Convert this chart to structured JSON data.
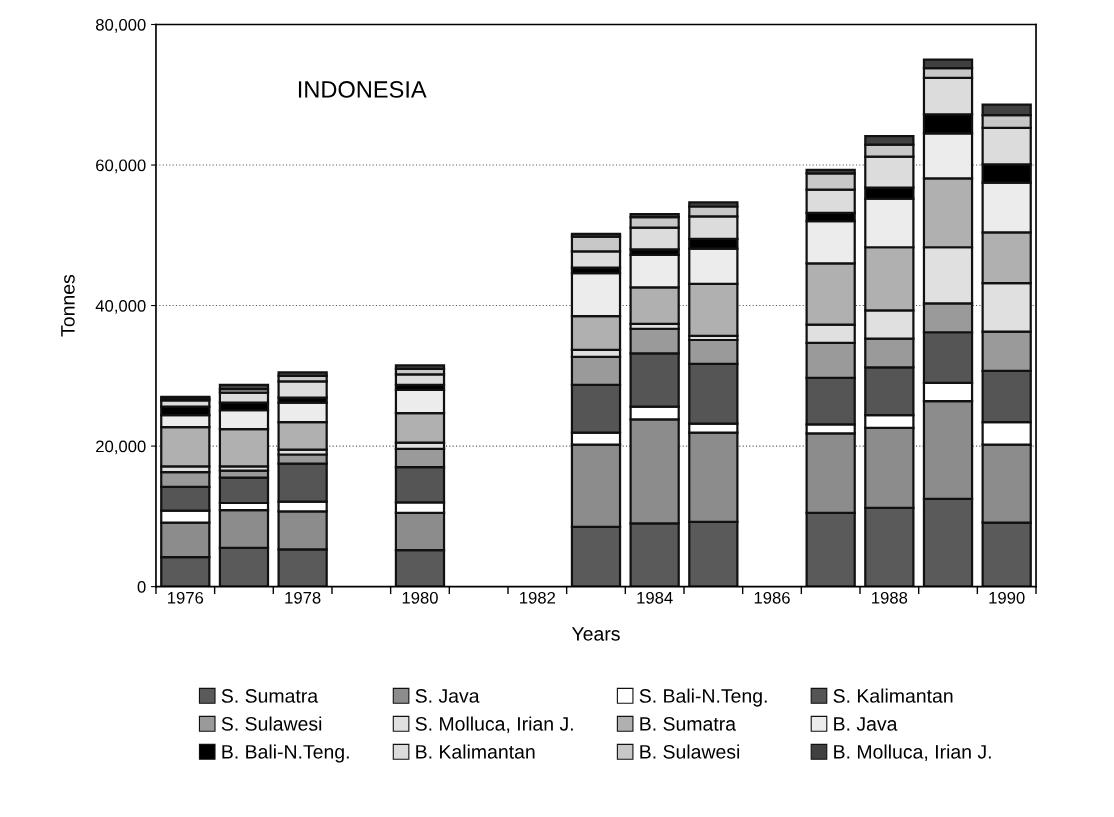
{
  "chart_data": {
    "type": "bar",
    "stacked": true,
    "title": "INDONESIA",
    "xlabel": "Years",
    "ylabel": "Tonnes",
    "categories": [
      "1976",
      null,
      "1978",
      null,
      "1980",
      null,
      "1982",
      null,
      "1984",
      null,
      "1986",
      null,
      "1988",
      null,
      "1990"
    ],
    "ylim": [
      0,
      80000
    ],
    "yticks": [
      {
        "value": 0,
        "label": "0"
      },
      {
        "value": 20000,
        "label": "20,000"
      },
      {
        "value": 40000,
        "label": "40,000"
      },
      {
        "value": 60000,
        "label": "60,000"
      },
      {
        "value": 80000,
        "label": "80,000"
      }
    ],
    "grid": "y",
    "legend": "bottom",
    "series": [
      {
        "name": "S. Sumatra",
        "color": "#5a5a5a",
        "values": [
          4200,
          5500,
          5300,
          null,
          5200,
          null,
          null,
          8500,
          9000,
          9200,
          null,
          10500,
          11200,
          12500,
          9100
        ]
      },
      {
        "name": "S. Java",
        "color": "#8c8c8c",
        "values": [
          4900,
          5400,
          5400,
          null,
          5300,
          null,
          null,
          11700,
          14800,
          12700,
          null,
          11300,
          11400,
          13900,
          11100
        ]
      },
      {
        "name": "S. Bali-N.Teng.",
        "color": "#ffffff",
        "values": [
          1700,
          1000,
          1400,
          null,
          1500,
          null,
          null,
          1700,
          1800,
          1300,
          null,
          1300,
          1800,
          2600,
          3200
        ]
      },
      {
        "name": "S. Kalimantan",
        "color": "#555555",
        "values": [
          3400,
          3600,
          5400,
          null,
          5000,
          null,
          null,
          6800,
          7600,
          8500,
          null,
          6600,
          6800,
          7200,
          7300
        ]
      },
      {
        "name": "S. Sulawesi",
        "color": "#9a9a9a",
        "values": [
          2100,
          1000,
          1300,
          null,
          2600,
          null,
          null,
          4000,
          3500,
          3400,
          null,
          5000,
          4100,
          4100,
          5600
        ]
      },
      {
        "name": "S. Molluca, Irian J.",
        "color": "#e0e0e0",
        "values": [
          800,
          600,
          700,
          null,
          900,
          null,
          null,
          1000,
          700,
          600,
          null,
          2600,
          4000,
          8000,
          6900
        ]
      },
      {
        "name": "B. Sumatra",
        "color": "#b0b0b0",
        "values": [
          5600,
          5300,
          3900,
          null,
          4200,
          null,
          null,
          4800,
          5200,
          7400,
          null,
          8700,
          9000,
          9800,
          7200
        ]
      },
      {
        "name": "B. Java",
        "color": "#ececec",
        "values": [
          1700,
          2700,
          2800,
          null,
          3300,
          null,
          null,
          6100,
          4600,
          5000,
          null,
          6000,
          6900,
          6400,
          7100
        ]
      },
      {
        "name": "B. Bali-N.Teng.",
        "color": "#000000",
        "values": [
          1200,
          1100,
          700,
          null,
          700,
          null,
          null,
          800,
          800,
          1400,
          null,
          1200,
          1600,
          2700,
          2600
        ]
      },
      {
        "name": "B. Kalimantan",
        "color": "#dcdcdc",
        "values": [
          900,
          1400,
          2300,
          null,
          1500,
          null,
          null,
          2300,
          3100,
          3200,
          null,
          3300,
          4400,
          5200,
          5200
        ]
      },
      {
        "name": "B. Sulawesi",
        "color": "#c8c8c8",
        "values": [
          300,
          500,
          800,
          null,
          800,
          null,
          null,
          2100,
          1500,
          1400,
          null,
          2300,
          1700,
          1400,
          1800
        ]
      },
      {
        "name": "B. Molluca, Irian J.",
        "color": "#404040",
        "values": [
          200,
          600,
          500,
          null,
          500,
          null,
          null,
          400,
          400,
          600,
          null,
          500,
          1200,
          1200,
          1500
        ]
      }
    ]
  }
}
